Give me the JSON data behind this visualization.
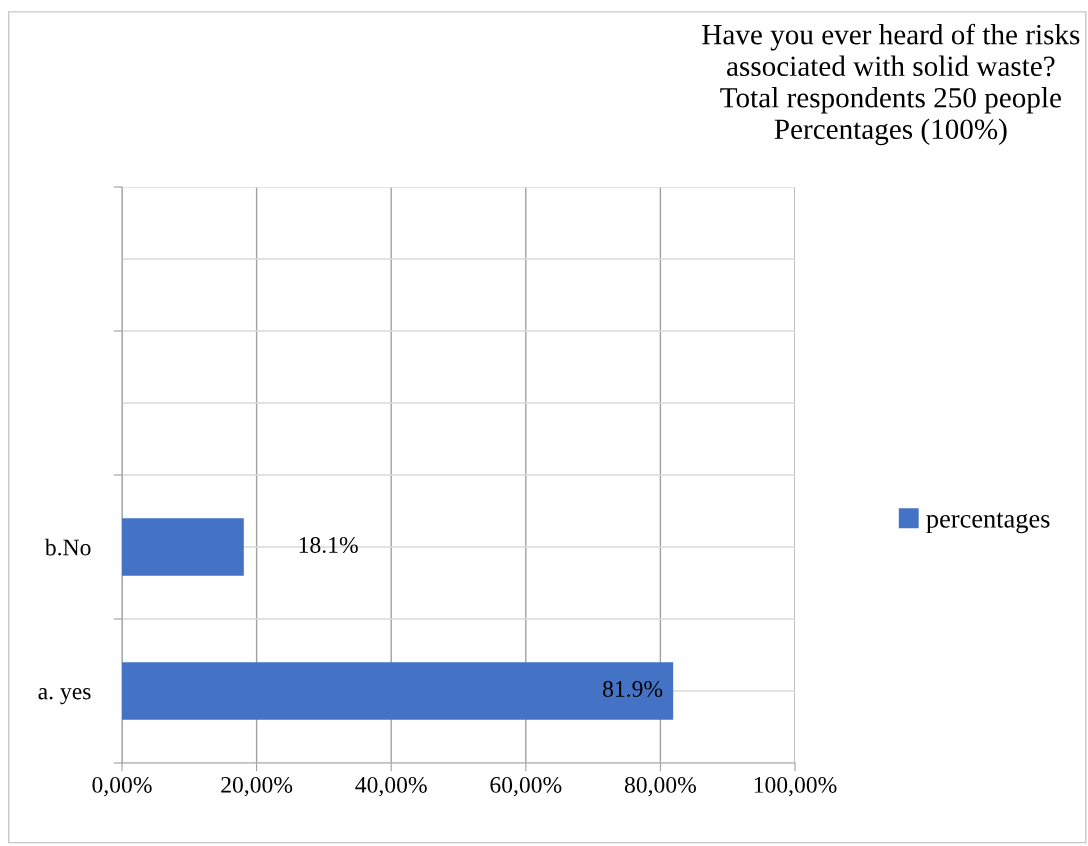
{
  "chart_data": {
    "type": "bar",
    "orientation": "horizontal",
    "title": "Have you ever heard of the risks\nassociated with solid waste?\nTotal respondents 250 people\nPercentages (100%)",
    "categories": [
      null,
      null,
      "b.No",
      "a. yes"
    ],
    "series": [
      {
        "name": "percentages",
        "color": "#4472c4",
        "values": [
          null,
          null,
          18.1,
          81.9
        ],
        "value_labels": [
          null,
          null,
          "18.1%",
          "81.9%"
        ]
      }
    ],
    "xlim": [
      0,
      100
    ],
    "xticks": [
      {
        "value": 0,
        "label": "0,00%"
      },
      {
        "value": 20,
        "label": "20,00%"
      },
      {
        "value": 40,
        "label": "40,00%"
      },
      {
        "value": 60,
        "label": "60,00%"
      },
      {
        "value": 80,
        "label": "80,00%"
      },
      {
        "value": 100,
        "label": "100,00%"
      }
    ],
    "grid": true,
    "legend": "right"
  }
}
